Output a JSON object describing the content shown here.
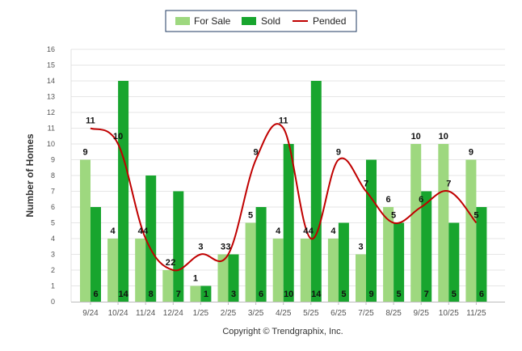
{
  "chart_data": {
    "type": "bar",
    "title": "",
    "xlabel": "",
    "ylabel": "Number of Homes",
    "ylim": [
      0,
      16
    ],
    "yticks": [
      0,
      1,
      2,
      3,
      4,
      5,
      6,
      7,
      8,
      9,
      10,
      11,
      12,
      13,
      14,
      15,
      16
    ],
    "categories": [
      "9/24",
      "10/24",
      "11/24",
      "12/24",
      "1/25",
      "2/25",
      "3/25",
      "4/25",
      "5/25",
      "6/25",
      "7/25",
      "8/25",
      "9/25",
      "10/25",
      "11/25"
    ],
    "series": [
      {
        "name": "For Sale",
        "kind": "bar",
        "color": "#9ed87f",
        "values": [
          9,
          4,
          4,
          2,
          1,
          3,
          5,
          4,
          4,
          4,
          3,
          6,
          10,
          10,
          9
        ]
      },
      {
        "name": "Sold",
        "kind": "bar",
        "color": "#18a52e",
        "values": [
          6,
          14,
          8,
          7,
          1,
          3,
          6,
          10,
          14,
          5,
          9,
          5,
          7,
          5,
          6
        ]
      },
      {
        "name": "Pended",
        "kind": "line",
        "color": "#c00000",
        "values": [
          11,
          10,
          4,
          2,
          3,
          3,
          9,
          11,
          4,
          9,
          7,
          5,
          6,
          7,
          5
        ]
      }
    ],
    "legend_position": "top-center",
    "grid": true
  },
  "footer": {
    "copyright": "Copyright © Trendgraphix, Inc."
  }
}
